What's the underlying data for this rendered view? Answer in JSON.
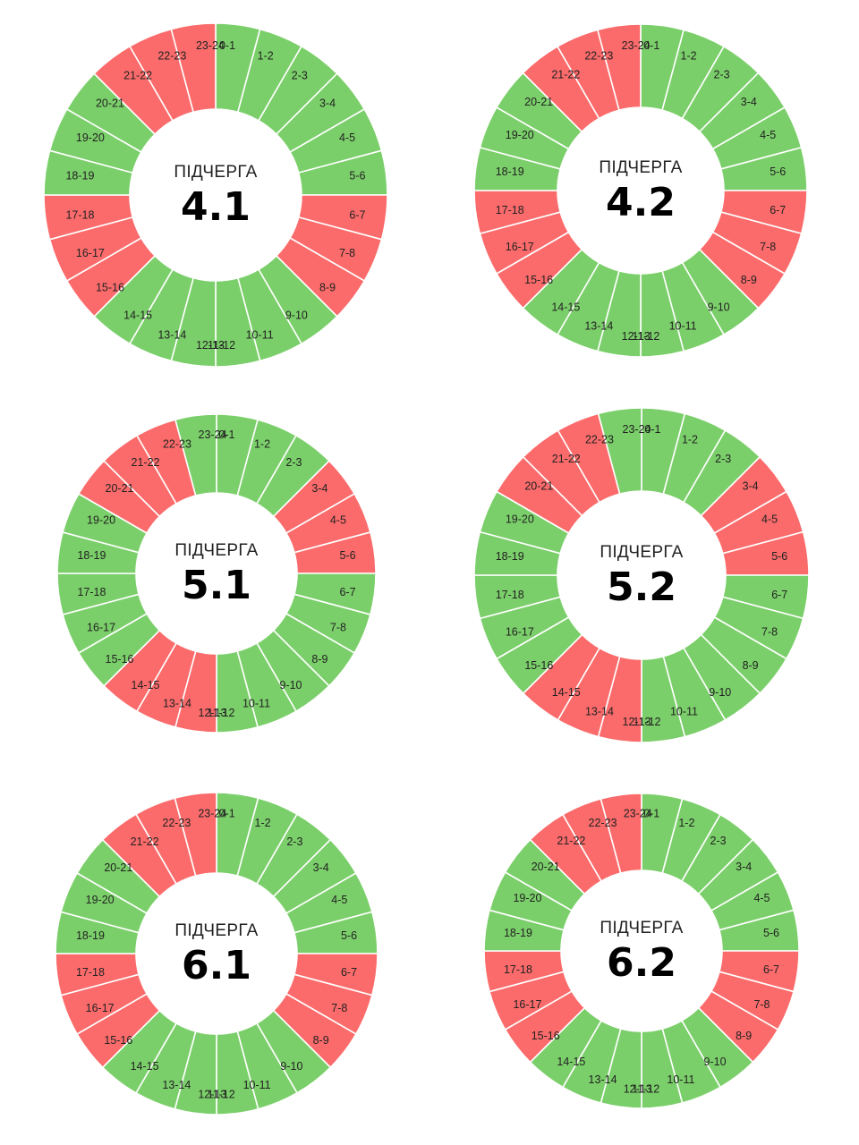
{
  "colors": {
    "power_on": "#7bcf6a",
    "power_off": "#fb6b6b",
    "separator": "#ffffff",
    "center": "#ffffff"
  },
  "legend_note": {
    "power_on_color": "green",
    "power_off_color": "red"
  },
  "hour_labels": [
    "0-1",
    "1-2",
    "2-3",
    "3-4",
    "4-5",
    "5-6",
    "6-7",
    "7-8",
    "8-9",
    "9-10",
    "10-11",
    "11-12",
    "12-13",
    "13-14",
    "14-15",
    "15-16",
    "16-17",
    "17-18",
    "18-19",
    "19-20",
    "20-21",
    "21-22",
    "22-23",
    "23-24"
  ],
  "queues": [
    {
      "caption": "ПІДЧЕРГА",
      "number": "4.1",
      "states": [
        "on",
        "on",
        "on",
        "on",
        "on",
        "on",
        "off",
        "off",
        "off",
        "on",
        "on",
        "on",
        "on",
        "on",
        "on",
        "off",
        "off",
        "off",
        "on",
        "on",
        "on",
        "off",
        "off",
        "off"
      ]
    },
    {
      "caption": "ПІДЧЕРГА",
      "number": "4.2",
      "states": [
        "on",
        "on",
        "on",
        "on",
        "on",
        "on",
        "off",
        "off",
        "off",
        "on",
        "on",
        "on",
        "on",
        "on",
        "on",
        "off",
        "off",
        "off",
        "on",
        "on",
        "on",
        "off",
        "off",
        "off"
      ]
    },
    {
      "caption": "ПІДЧЕРГА",
      "number": "5.1",
      "states": [
        "on",
        "on",
        "on",
        "off",
        "off",
        "off",
        "on",
        "on",
        "on",
        "on",
        "on",
        "on",
        "off",
        "off",
        "off",
        "on",
        "on",
        "on",
        "on",
        "on",
        "off",
        "off",
        "off",
        "on"
      ]
    },
    {
      "caption": "ПІДЧЕРГА",
      "number": "5.2",
      "states": [
        "on",
        "on",
        "on",
        "off",
        "off",
        "off",
        "on",
        "on",
        "on",
        "on",
        "on",
        "on",
        "off",
        "off",
        "off",
        "on",
        "on",
        "on",
        "on",
        "on",
        "off",
        "off",
        "off",
        "on"
      ]
    },
    {
      "caption": "ПІДЧЕРГА",
      "number": "6.1",
      "states": [
        "on",
        "on",
        "on",
        "on",
        "on",
        "on",
        "off",
        "off",
        "off",
        "on",
        "on",
        "on",
        "on",
        "on",
        "on",
        "off",
        "off",
        "off",
        "on",
        "on",
        "on",
        "off",
        "off",
        "off"
      ]
    },
    {
      "caption": "ПІДЧЕРГА",
      "number": "6.2",
      "states": [
        "on",
        "on",
        "on",
        "on",
        "on",
        "on",
        "off",
        "off",
        "off",
        "on",
        "on",
        "on",
        "on",
        "on",
        "on",
        "off",
        "off",
        "off",
        "on",
        "on",
        "on",
        "off",
        "off",
        "off"
      ]
    }
  ]
}
